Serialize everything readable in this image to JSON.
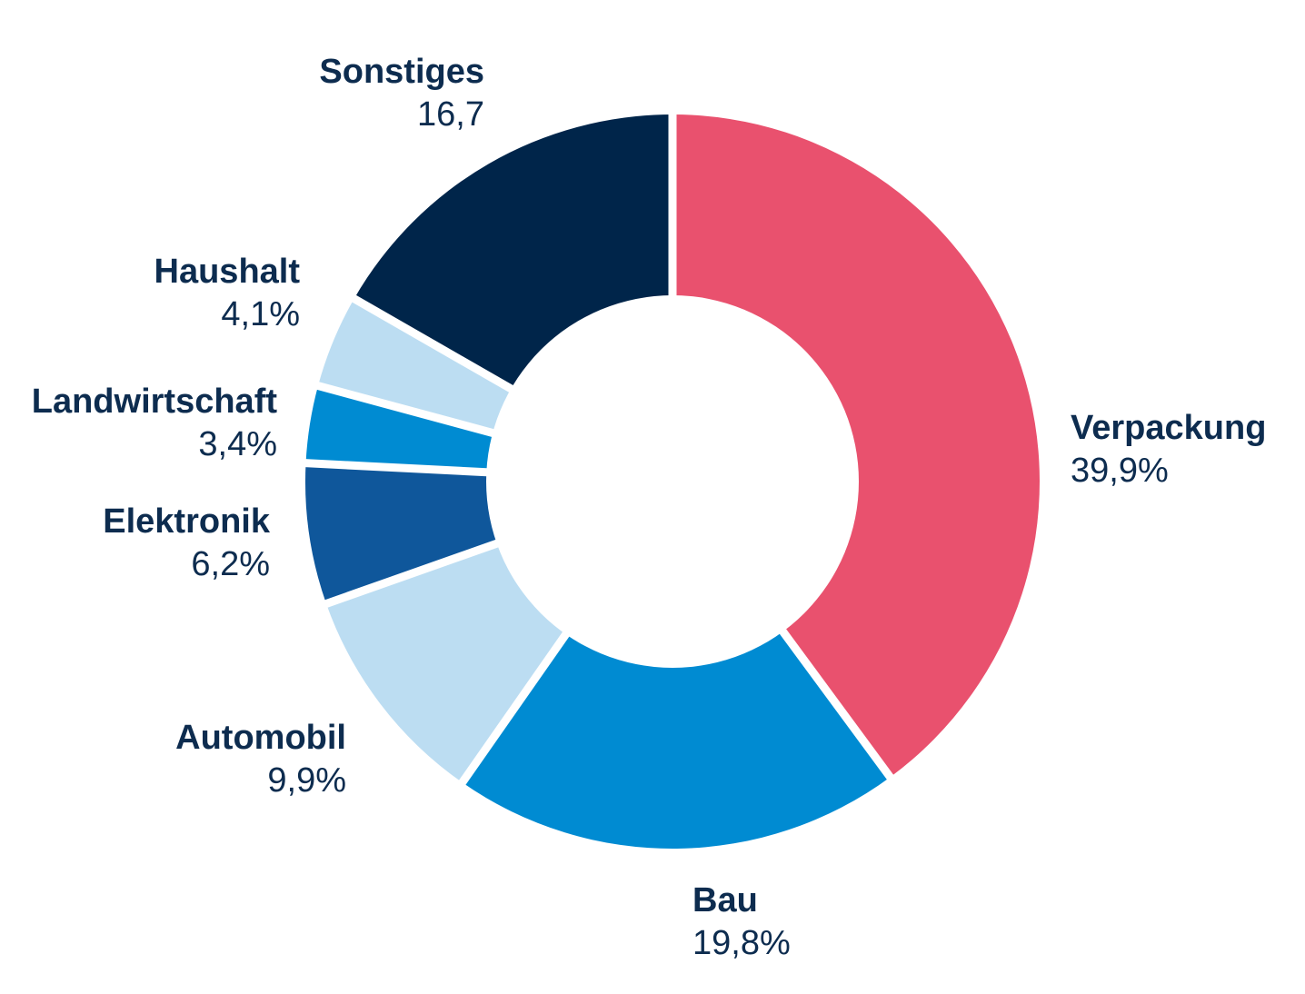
{
  "chart_data": {
    "type": "pie",
    "variant": "donut",
    "title": "",
    "legend": "none",
    "direction": "clockwise",
    "start_angle": "12-oclock",
    "categories": [
      "Verpackung",
      "Bau",
      "Automobil",
      "Elektronik",
      "Landwirtschaft",
      "Haushalt",
      "Sonstiges"
    ],
    "values": [
      39.9,
      19.8,
      9.9,
      6.2,
      3.4,
      4.1,
      16.7
    ],
    "value_labels": [
      "39,9%",
      "19,8%",
      "9,9%",
      "6,2%",
      "3,4%",
      "4,1%",
      "16,7"
    ],
    "colors": [
      "#E9516E",
      "#008BD2",
      "#BCDDF2",
      "#0F579B",
      "#008BD2",
      "#BCDDF2",
      "#00254A"
    ],
    "label_color": "#0D2C4F",
    "separator_color": "#FFFFFF",
    "background_color": "#FFFFFF"
  }
}
